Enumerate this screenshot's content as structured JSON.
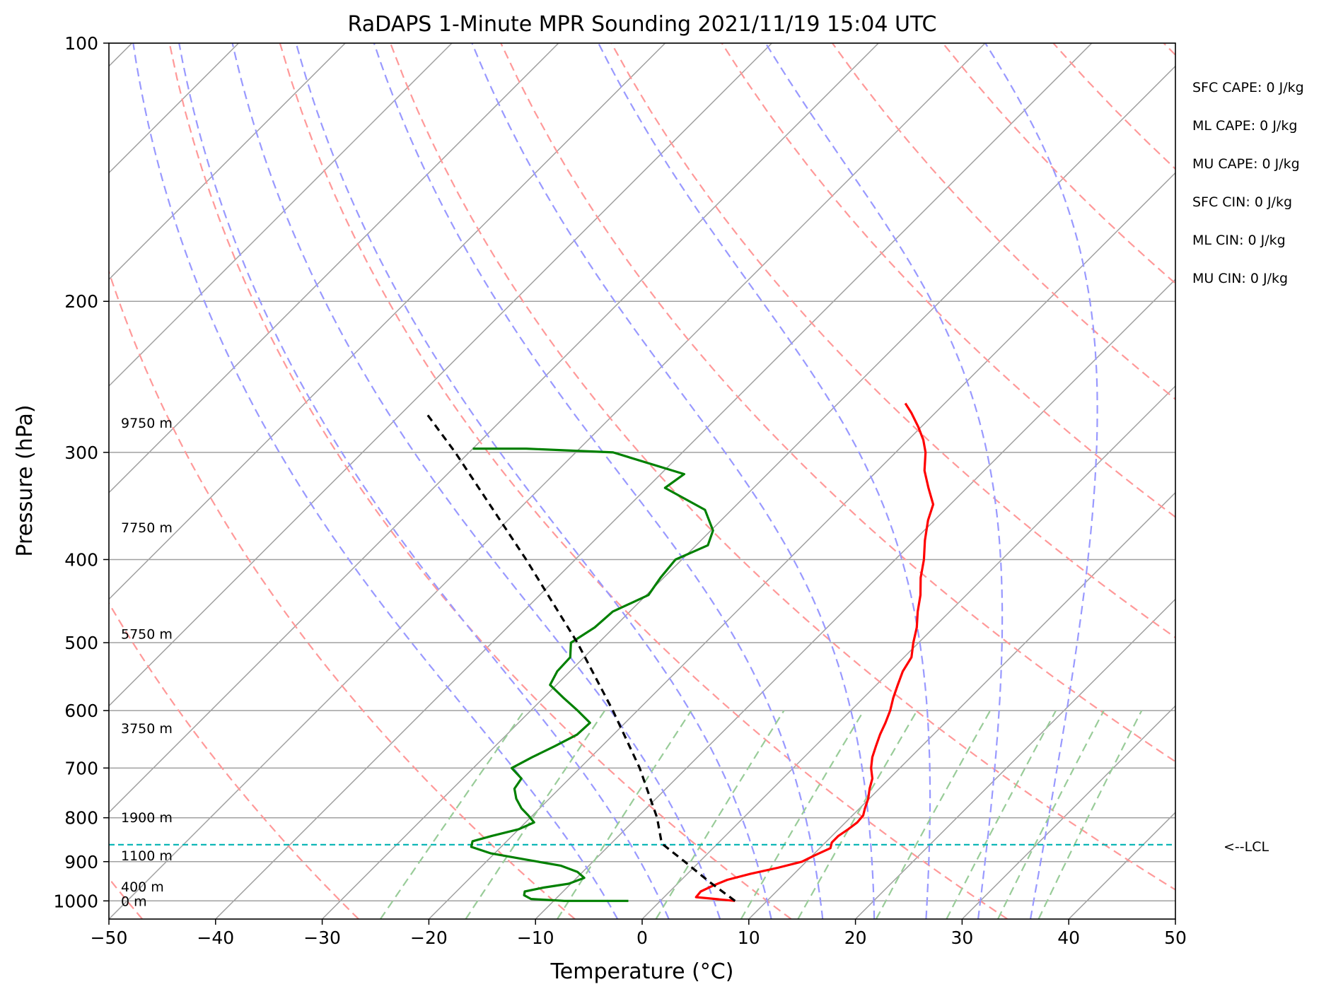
{
  "chart_data": {
    "type": "line",
    "title": "RaDAPS 1-Minute MPR Sounding 2021/11/19 15:04 UTC",
    "xlabel": "Temperature (°C)",
    "ylabel": "Pressure (hPa)",
    "xlim": [
      -50,
      50
    ],
    "ylim": [
      1050,
      100
    ],
    "y_scale": "log",
    "x_ticks": [
      -50,
      -40,
      -30,
      -20,
      -10,
      0,
      10,
      20,
      30,
      40,
      50
    ],
    "x_tick_labels": [
      "−50",
      "−40",
      "−30",
      "−20",
      "−10",
      "0",
      "10",
      "20",
      "30",
      "40",
      "50"
    ],
    "y_ticks": [
      100,
      200,
      300,
      400,
      500,
      600,
      700,
      800,
      900,
      1000
    ],
    "y_tick_labels": [
      "100",
      "200",
      "300",
      "400",
      "500",
      "600",
      "700",
      "800",
      "900",
      "1000"
    ],
    "skew": "skew-T log-P",
    "grid": true,
    "series": [
      {
        "kind": "temperature",
        "color": "#ff0000",
        "points": [
          [
            1000,
            7.0
          ],
          [
            990,
            3.0
          ],
          [
            975,
            2.9
          ],
          [
            960,
            3.5
          ],
          [
            945,
            4.3
          ],
          [
            930,
            5.9
          ],
          [
            915,
            7.9
          ],
          [
            900,
            9.6
          ],
          [
            885,
            10.2
          ],
          [
            868,
            11.0
          ],
          [
            855,
            10.6
          ],
          [
            840,
            10.6
          ],
          [
            825,
            10.9
          ],
          [
            810,
            11.1
          ],
          [
            795,
            11.0
          ],
          [
            780,
            10.5
          ],
          [
            760,
            9.9
          ],
          [
            740,
            9.1
          ],
          [
            720,
            8.4
          ],
          [
            700,
            7.3
          ],
          [
            680,
            6.4
          ],
          [
            660,
            5.7
          ],
          [
            640,
            5.0
          ],
          [
            620,
            4.4
          ],
          [
            600,
            3.7
          ],
          [
            580,
            2.8
          ],
          [
            560,
            2.0
          ],
          [
            540,
            1.2
          ],
          [
            520,
            0.7
          ],
          [
            500,
            -0.5
          ],
          [
            480,
            -1.6
          ],
          [
            460,
            -3.0
          ],
          [
            440,
            -4.3
          ],
          [
            420,
            -5.9
          ],
          [
            400,
            -7.3
          ],
          [
            380,
            -9.0
          ],
          [
            360,
            -10.6
          ],
          [
            345,
            -11.6
          ],
          [
            330,
            -13.6
          ],
          [
            315,
            -15.6
          ],
          [
            300,
            -17.2
          ],
          [
            290,
            -18.6
          ],
          [
            280,
            -20.3
          ],
          [
            270,
            -22.2
          ],
          [
            263,
            -23.7
          ]
        ]
      },
      {
        "kind": "dewpoint",
        "color": "#008000",
        "points": [
          [
            1000,
            -3.0
          ],
          [
            1000,
            -9.0
          ],
          [
            995,
            -12.3
          ],
          [
            985,
            -13.3
          ],
          [
            975,
            -13.6
          ],
          [
            965,
            -12.2
          ],
          [
            955,
            -10.2
          ],
          [
            940,
            -9.3
          ],
          [
            925,
            -10.5
          ],
          [
            910,
            -12.6
          ],
          [
            895,
            -16.5
          ],
          [
            880,
            -20.4
          ],
          [
            865,
            -22.8
          ],
          [
            852,
            -23.2
          ],
          [
            840,
            -21.9
          ],
          [
            825,
            -20.0
          ],
          [
            810,
            -19.2
          ],
          [
            795,
            -20.4
          ],
          [
            780,
            -21.7
          ],
          [
            760,
            -23.1
          ],
          [
            740,
            -24.2
          ],
          [
            720,
            -24.5
          ],
          [
            700,
            -26.4
          ],
          [
            680,
            -25.5
          ],
          [
            660,
            -24.4
          ],
          [
            640,
            -23.4
          ],
          [
            620,
            -23.3
          ],
          [
            600,
            -25.6
          ],
          [
            580,
            -28.1
          ],
          [
            560,
            -30.6
          ],
          [
            540,
            -31.2
          ],
          [
            520,
            -31.3
          ],
          [
            500,
            -32.6
          ],
          [
            480,
            -31.8
          ],
          [
            460,
            -31.6
          ],
          [
            440,
            -29.8
          ],
          [
            420,
            -30.3
          ],
          [
            400,
            -30.6
          ],
          [
            385,
            -28.9
          ],
          [
            370,
            -29.8
          ],
          [
            350,
            -32.5
          ],
          [
            330,
            -38.3
          ],
          [
            318,
            -37.8
          ],
          [
            300,
            -46.5
          ],
          [
            297,
            -55.0
          ],
          [
            297,
            -60.0
          ]
        ]
      },
      {
        "kind": "parcel",
        "color": "#000000",
        "points": [
          [
            1000,
            7.0
          ],
          [
            950,
            2.8
          ],
          [
            900,
            -1.4
          ],
          [
            860,
            -5.0
          ],
          [
            850,
            -5.6
          ],
          [
            800,
            -8.1
          ],
          [
            700,
            -14.4
          ],
          [
            600,
            -22.3
          ],
          [
            500,
            -32.0
          ],
          [
            400,
            -44.6
          ],
          [
            300,
            -61.3
          ],
          [
            270,
            -67.7
          ]
        ]
      }
    ],
    "dry_adiabats_theta_K": [
      203.15,
      223.15,
      243.15,
      263.15,
      283.15,
      303.15,
      323.15,
      343.15,
      363.15,
      383.15,
      403.15,
      423.15,
      443.15,
      463.15
    ],
    "moist_adiabats_start_C": [
      -5,
      0,
      5,
      10,
      15,
      20,
      25,
      30,
      35
    ],
    "mixing_ratio_lines_gkg": [
      0.5,
      1,
      2,
      4,
      7,
      10,
      16,
      24,
      32,
      40
    ],
    "lcl_pressure_hPa": 860,
    "lcl_label": "<--LCL",
    "height_labels": [
      {
        "text": "9750 m",
        "p": 277
      },
      {
        "text": "7750 m",
        "p": 367
      },
      {
        "text": "5750 m",
        "p": 488
      },
      {
        "text": "3750 m",
        "p": 629
      },
      {
        "text": "1900 m",
        "p": 799
      },
      {
        "text": "1100 m",
        "p": 885
      },
      {
        "text": "400 m",
        "p": 962
      },
      {
        "text": "0 m",
        "p": 1000
      }
    ],
    "indices": [
      "SFC CAPE: 0 J/kg",
      "ML CAPE: 0 J/kg",
      "MU CAPE: 0 J/kg",
      "SFC CIN: 0 J/kg",
      "ML CIN: 0 J/kg",
      "MU CIN: 0 J/kg"
    ],
    "colors": {
      "dry_adiabat": "#ff9999",
      "moist_adiabat": "#9999ff",
      "mixing_ratio": "#99cc99",
      "isotherm": "#a0a0a0",
      "isobar": "#a0a0a0",
      "lcl": "#00b2b2"
    }
  }
}
